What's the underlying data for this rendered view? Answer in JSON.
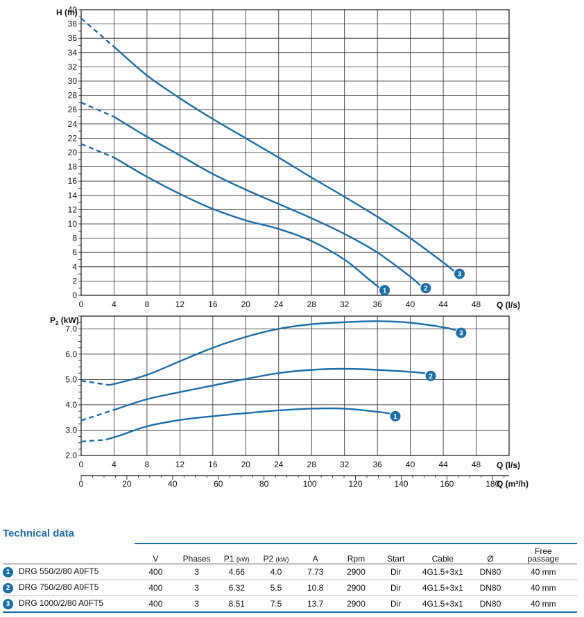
{
  "chart_data": [
    {
      "type": "line",
      "name": "H-Q",
      "ylabel": "H (m)",
      "xlabel": "Q (l/s)",
      "xlim": [
        0,
        52
      ],
      "ylim": [
        0,
        40
      ],
      "x_ticks": [
        0,
        4,
        8,
        12,
        16,
        20,
        24,
        28,
        32,
        36,
        40,
        44,
        48
      ],
      "y_ticks": [
        0,
        2,
        4,
        6,
        8,
        10,
        12,
        14,
        16,
        18,
        20,
        22,
        24,
        26,
        28,
        30,
        32,
        34,
        36,
        38,
        40
      ],
      "series": [
        {
          "name": "1",
          "dashed": [
            [
              0,
              21.2
            ],
            [
              4,
              19.3
            ]
          ],
          "points": [
            [
              4,
              19.3
            ],
            [
              8,
              16.6
            ],
            [
              12,
              14.2
            ],
            [
              16,
              12.1
            ],
            [
              20,
              10.5
            ],
            [
              24,
              9.3
            ],
            [
              28,
              7.6
            ],
            [
              32,
              5
            ],
            [
              35,
              2.2
            ],
            [
              36.2,
              1.1
            ]
          ]
        },
        {
          "name": "2",
          "dashed": [
            [
              0,
              27
            ],
            [
              4,
              25
            ]
          ],
          "points": [
            [
              4,
              25
            ],
            [
              8,
              22.2
            ],
            [
              12,
              19.6
            ],
            [
              16,
              17
            ],
            [
              20,
              14.8
            ],
            [
              24,
              12.8
            ],
            [
              28,
              10.8
            ],
            [
              32,
              8.6
            ],
            [
              36,
              6
            ],
            [
              40,
              2.6
            ],
            [
              41.2,
              1.4
            ]
          ]
        },
        {
          "name": "3",
          "dashed": [
            [
              0,
              38.8
            ],
            [
              4,
              34.8
            ]
          ],
          "points": [
            [
              4,
              34.8
            ],
            [
              8,
              30.8
            ],
            [
              12,
              27.6
            ],
            [
              16,
              24.7
            ],
            [
              20,
              22
            ],
            [
              24,
              19.3
            ],
            [
              28,
              16.5
            ],
            [
              32,
              13.8
            ],
            [
              36,
              11
            ],
            [
              40,
              8
            ],
            [
              44,
              4.6
            ],
            [
              45.3,
              3.4
            ]
          ]
        }
      ]
    },
    {
      "type": "line",
      "name": "P2-Q",
      "ylabel": "P2 (kW)",
      "xlabel": "Q (l/s)",
      "xlabel2": "Q (m³/h)",
      "xlim": [
        0,
        52
      ],
      "ylim": [
        2.0,
        7.5
      ],
      "x_ticks": [
        0,
        4,
        8,
        12,
        16,
        20,
        24,
        28,
        32,
        36,
        40,
        44,
        48
      ],
      "x2_ticks": [
        0,
        20,
        40,
        60,
        80,
        100,
        120,
        140,
        160,
        180
      ],
      "y_ticks": [
        2.0,
        3.0,
        4.0,
        5.0,
        6.0,
        7.0
      ],
      "y_tick_labels": [
        "2.0",
        "3.0",
        "4.0",
        "5.0",
        "6.0",
        "7.0"
      ],
      "series": [
        {
          "name": "1",
          "dashed": [
            [
              0,
              2.55
            ],
            [
              3,
              2.62
            ]
          ],
          "points": [
            [
              3,
              2.62
            ],
            [
              5,
              2.82
            ],
            [
              8,
              3.15
            ],
            [
              12,
              3.4
            ],
            [
              16,
              3.55
            ],
            [
              20,
              3.67
            ],
            [
              24,
              3.78
            ],
            [
              28,
              3.85
            ],
            [
              32,
              3.85
            ],
            [
              36,
              3.72
            ],
            [
              37.5,
              3.66
            ]
          ]
        },
        {
          "name": "2",
          "dashed": [
            [
              0,
              3.38
            ],
            [
              4,
              3.8
            ]
          ],
          "points": [
            [
              4,
              3.8
            ],
            [
              8,
              4.22
            ],
            [
              12,
              4.5
            ],
            [
              16,
              4.76
            ],
            [
              20,
              5.02
            ],
            [
              24,
              5.25
            ],
            [
              28,
              5.38
            ],
            [
              32,
              5.42
            ],
            [
              36,
              5.38
            ],
            [
              40,
              5.3
            ],
            [
              41.8,
              5.25
            ]
          ]
        },
        {
          "name": "3",
          "dashed": [
            [
              0,
              4.95
            ],
            [
              3,
              4.8
            ]
          ],
          "points": [
            [
              3,
              4.8
            ],
            [
              4,
              4.82
            ],
            [
              8,
              5.18
            ],
            [
              12,
              5.72
            ],
            [
              16,
              6.25
            ],
            [
              20,
              6.68
            ],
            [
              24,
              7.0
            ],
            [
              28,
              7.18
            ],
            [
              32,
              7.26
            ],
            [
              36,
              7.3
            ],
            [
              40,
              7.24
            ],
            [
              44,
              7.06
            ],
            [
              45.5,
              6.95
            ]
          ]
        }
      ]
    }
  ],
  "table": {
    "title": "Technical data",
    "headers": {
      "v": "V",
      "phases": "Phases",
      "p1": "P1",
      "p1_unit": "(kW)",
      "p2": "P2",
      "p2_unit": "(kW)",
      "a": "A",
      "rpm": "Rpm",
      "start": "Start",
      "cable": "Cable",
      "dia": "Ø",
      "free1": "Free",
      "free2": "passage"
    },
    "rows": [
      {
        "num": "1",
        "model": "DRG 550/2/80 A0FT5",
        "v": "400",
        "phases": "3",
        "p1": "4.66",
        "p2": "4.0",
        "a": "7.73",
        "rpm": "2900",
        "start": "Dir",
        "cable": "4G1.5+3x1",
        "dia": "DN80",
        "free": "40 mm"
      },
      {
        "num": "2",
        "model": "DRG 750/2/80 A0FT5",
        "v": "400",
        "phases": "3",
        "p1": "6.32",
        "p2": "5.5",
        "a": "10.8",
        "rpm": "2900",
        "start": "Dir",
        "cable": "4G1.5+3x1",
        "dia": "DN80",
        "free": "40 mm"
      },
      {
        "num": "3",
        "model": "DRG 1000/2/80 A0FT5",
        "v": "400",
        "phases": "3",
        "p1": "8.51",
        "p2": "7.5",
        "a": "13.7",
        "rpm": "2900",
        "start": "Dir",
        "cable": "4G1.5+3x1",
        "dia": "DN80",
        "free": "40 mm"
      }
    ]
  },
  "colors": {
    "curve": "#1a6fa8",
    "accent": "#1a6fa8"
  }
}
